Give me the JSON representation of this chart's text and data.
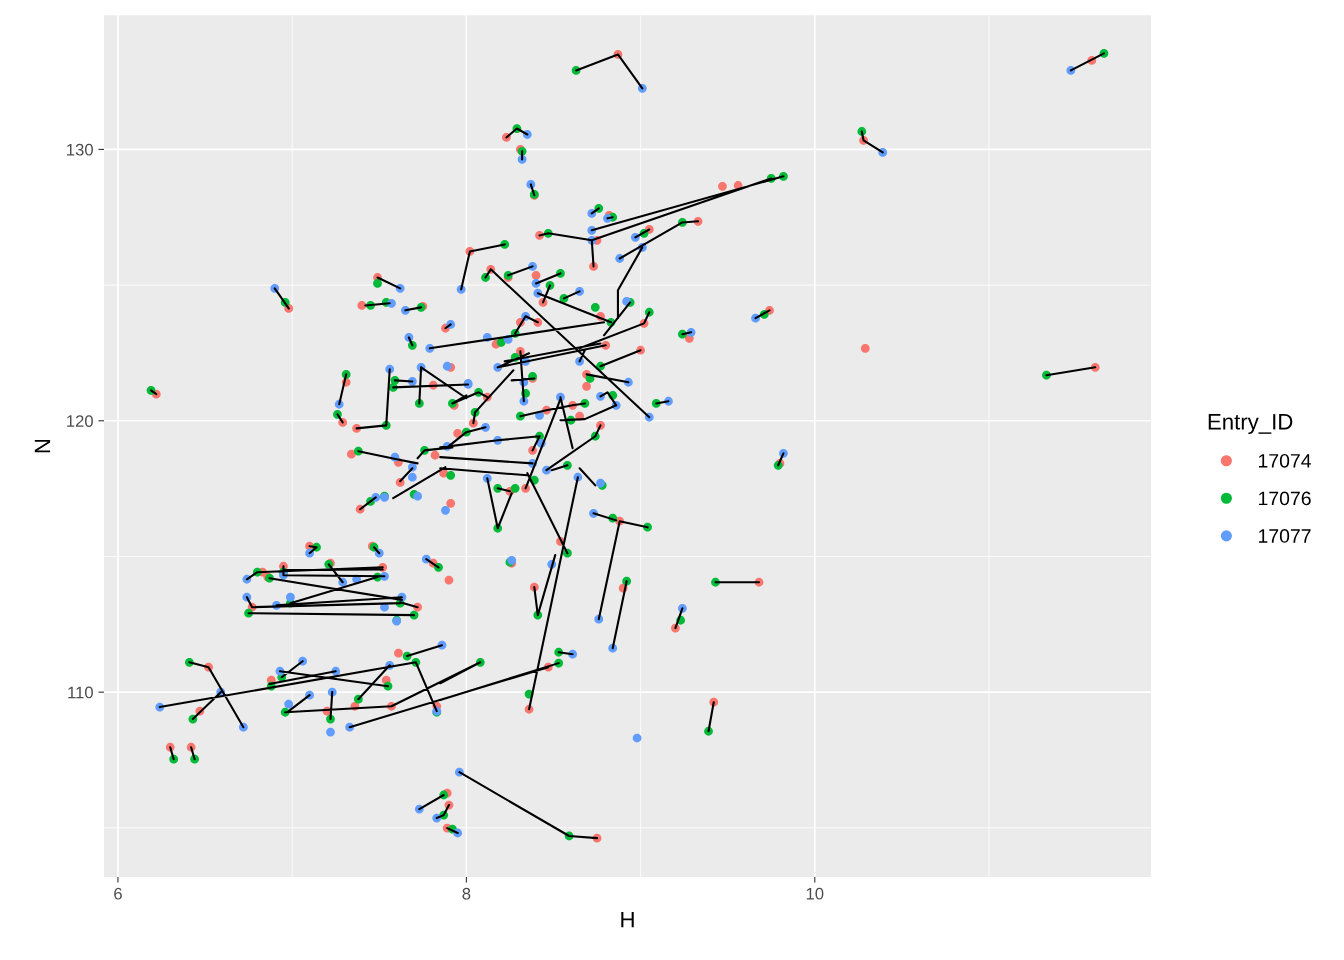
{
  "chart_data": {
    "type": "scatter",
    "xlabel": "H",
    "ylabel": "N",
    "legend_title": "Entry_ID",
    "xlim": [
      5.92,
      11.93
    ],
    "ylim": [
      103.19,
      134.94
    ],
    "xticks": [
      6,
      8,
      10
    ],
    "yticks": [
      110,
      120,
      130
    ],
    "grid": true,
    "legend": "right",
    "series": [
      {
        "name": "17074",
        "color": "#f8766d",
        "marker": "circle",
        "x": [
          8.87,
          11.59,
          10.28,
          10.29,
          11.61,
          9.8,
          9.74,
          9.47,
          9.56,
          8.23,
          8.31,
          8.39,
          8.02,
          8.42,
          8.75,
          8.82,
          9.05,
          9.33,
          6.52,
          6.47,
          6.3,
          6.42,
          6.88,
          7.54,
          7.61,
          null,
          7.2,
          7.36,
          7.57,
          7.83,
          8.75,
          7.89,
          7.9,
          7.89,
          6.83,
          7.52,
          6.86,
          6.95,
          7.22,
          6.77,
          null,
          7.72,
          7.1,
          7.46,
          7.81,
          7.9,
          6.98,
          6.22,
          7.49,
          7.4,
          7.75,
          7.88,
          7.91,
          7.31,
          7.29,
          7.37,
          7.81,
          7.93,
          7.34,
          7.61,
          7.82,
          7.87,
          7.62,
          7.39,
          7.91,
          8.73,
          8.14,
          8.24,
          8.4,
          8.44,
          8.77,
          9.02,
          8.31,
          8.41,
          8.17,
          9.0,
          8.8,
          8.31,
          8.38,
          8.04,
          8.12,
          8.69,
          8.69,
          7.95,
          8.46,
          8.61,
          8.65,
          8.77,
          8.38,
          8.34,
          8.25,
          8.88,
          8.54,
          8.26,
          8.39,
          8.9,
          9.2,
          9.68,
          8.47,
          8.36,
          9.42,
          9.28
        ],
        "values": [
          133.5,
          133.28,
          130.33,
          122.67,
          121.97,
          118.43,
          124.07,
          128.64,
          128.67,
          130.44,
          130.0,
          128.31,
          126.24,
          126.83,
          126.65,
          127.57,
          127.05,
          127.35,
          110.92,
          109.3,
          107.97,
          107.97,
          110.44,
          110.44,
          111.44,
          null,
          109.3,
          109.48,
          109.48,
          109.48,
          104.62,
          106.28,
          105.84,
          104.99,
          114.42,
          114.6,
          114.24,
          114.64,
          114.75,
          113.13,
          null,
          113.13,
          115.38,
          115.38,
          114.75,
          114.13,
          124.14,
          120.98,
          125.28,
          124.25,
          124.22,
          123.41,
          121.97,
          121.42,
          119.94,
          119.72,
          121.31,
          120.57,
          118.77,
          118.47,
          118.73,
          118.07,
          117.73,
          116.74,
          116.96,
          125.69,
          125.58,
          125.28,
          125.36,
          124.36,
          123.85,
          123.59,
          123.63,
          123.63,
          122.82,
          122.6,
          122.78,
          122.56,
          121.56,
          119.91,
          120.87,
          121.71,
          121.27,
          119.54,
          120.39,
          120.57,
          120.17,
          119.83,
          118.91,
          117.51,
          117.4,
          116.3,
          115.56,
          114.75,
          113.87,
          113.83,
          112.36,
          114.05,
          110.92,
          109.37,
          109.63,
          123.04
        ]
      },
      {
        "name": "17076",
        "color": "#00ba38",
        "marker": "circle",
        "x": [
          8.63,
          11.66,
          10.27,
          11.33,
          9.79,
          9.71,
          9.75,
          9.82,
          8.29,
          8.32,
          8.39,
          8.22,
          8.47,
          8.76,
          8.84,
          9.02,
          9.24,
          6.41,
          6.43,
          6.32,
          6.44,
          6.88,
          6.94,
          7.55,
          7.66,
          7.71,
          8.08,
          6.96,
          7.22,
          7.38,
          7.83,
          8.59,
          7.87,
          7.87,
          7.92,
          6.8,
          7.49,
          6.87,
          6.95,
          7.21,
          6.75,
          6.99,
          7.62,
          7.7,
          7.6,
          7.14,
          7.47,
          7.84,
          6.96,
          6.19,
          7.49,
          7.45,
          7.54,
          7.74,
          7.69,
          7.31,
          7.26,
          7.54,
          7.59,
          7.58,
          7.73,
          7.92,
          7.38,
          7.76,
          7.91,
          7.53,
          7.7,
          7.45,
          8.11,
          8.24,
          8.54,
          8.48,
          8.56,
          8.74,
          8.83,
          9.05,
          8.94,
          8.28,
          8.2,
          8.77,
          8.28,
          8.38,
          8.34,
          8.05,
          8.07,
          8.0,
          8.71,
          8.84,
          9.09,
          8.31,
          8.68,
          8.6,
          8.74,
          8.58,
          8.42,
          8.39,
          8.28,
          8.18,
          8.18,
          8.78,
          8.84,
          9.04,
          8.58,
          8.25,
          8.41,
          8.92,
          9.23,
          9.43,
          8.53,
          8.53,
          8.36,
          9.39,
          9.24
        ],
        "values": [
          132.91,
          133.54,
          130.66,
          121.68,
          118.36,
          123.92,
          128.93,
          129.01,
          130.77,
          129.93,
          128.34,
          126.5,
          126.91,
          127.83,
          127.5,
          126.91,
          127.31,
          111.1,
          109.01,
          107.53,
          107.53,
          110.22,
          110.55,
          110.22,
          111.33,
          111.1,
          111.1,
          109.26,
          109.01,
          109.74,
          109.26,
          104.7,
          106.21,
          105.47,
          104.95,
          114.42,
          114.24,
          114.2,
          114.42,
          114.71,
          112.91,
          113.28,
          113.28,
          112.84,
          112.65,
          115.34,
          115.34,
          114.6,
          124.36,
          121.12,
          125.06,
          124.25,
          124.36,
          124.18,
          122.78,
          121.71,
          120.24,
          119.83,
          121.49,
          121.23,
          120.64,
          120.64,
          118.88,
          118.91,
          117.99,
          117.22,
          117.29,
          117.03,
          125.28,
          125.36,
          125.43,
          124.99,
          124.51,
          124.18,
          123.63,
          124.0,
          124.36,
          123.22,
          122.89,
          122.01,
          122.34,
          121.64,
          121.01,
          120.31,
          121.05,
          119.58,
          121.56,
          120.94,
          120.64,
          120.17,
          120.64,
          120.02,
          119.43,
          118.36,
          119.43,
          117.81,
          117.51,
          117.51,
          116.04,
          117.62,
          116.41,
          116.08,
          115.12,
          114.79,
          112.84,
          114.09,
          112.65,
          114.05,
          111.47,
          111.07,
          109.93,
          108.56,
          123.19
        ]
      },
      {
        "name": "17077",
        "color": "#619cff",
        "marker": "circle",
        "x": [
          9.01,
          11.47,
          10.39,
          9.82,
          9.66,
          8.72,
          8.72,
          8.35,
          8.32,
          8.37,
          7.97,
          8.72,
          8.81,
          8.97,
          9.01,
          8.88,
          6.72,
          6.24,
          6.59,
          6.93,
          7.06,
          7.25,
          7.86,
          7.56,
          6.98,
          7.1,
          7.23,
          7.22,
          7.33,
          7.83,
          7.96,
          7.73,
          7.83,
          7.95,
          6.74,
          7.53,
          6.95,
          7.29,
          7.37,
          6.74,
          6.91,
          6.99,
          7.63,
          7.53,
          7.6,
          7.1,
          7.5,
          7.77,
          6.9,
          7.62,
          7.57,
          7.65,
          7.91,
          7.67,
          7.79,
          7.89,
          7.27,
          7.56,
          7.69,
          8.01,
          7.74,
          7.59,
          7.69,
          7.89,
          7.69,
          7.53,
          7.72,
          7.48,
          7.88,
          8.38,
          8.4,
          8.41,
          8.65,
          8.92,
          8.34,
          8.24,
          8.12,
          9.05,
          8.18,
          8.34,
          8.33,
          8.33,
          8.01,
          8.93,
          8.65,
          8.77,
          8.86,
          9.16,
          8.42,
          8.54,
          8.11,
          8.18,
          8.43,
          8.46,
          8.64,
          8.38,
          8.12,
          8.77,
          8.73,
          8.76,
          8.26,
          8.49,
          8.84,
          9.24,
          8.61,
          8.98,
          9.29
        ],
        "values": [
          132.25,
          132.91,
          129.89,
          118.8,
          123.78,
          127.02,
          126.65,
          130.55,
          129.63,
          128.71,
          124.84,
          127.64,
          127.46,
          126.76,
          126.39,
          125.98,
          108.71,
          109.45,
          110.0,
          110.77,
          111.14,
          110.77,
          111.73,
          110.99,
          109.56,
          109.89,
          110.0,
          108.53,
          108.71,
          109.3,
          107.05,
          105.69,
          105.36,
          104.81,
          114.16,
          114.27,
          114.31,
          114.05,
          114.16,
          113.5,
          113.2,
          113.5,
          113.5,
          113.13,
          112.62,
          115.12,
          115.12,
          114.9,
          124.88,
          124.88,
          124.33,
          124.07,
          123.55,
          123.07,
          122.67,
          122.01,
          120.61,
          121.9,
          121.45,
          121.34,
          121.97,
          118.66,
          118.29,
          119.06,
          117.92,
          117.18,
          117.22,
          117.18,
          116.7,
          125.69,
          125.06,
          124.7,
          124.77,
          124.4,
          123.85,
          123.0,
          123.07,
          120.13,
          121.97,
          122.19,
          121.42,
          120.72,
          121.38,
          121.42,
          122.19,
          120.9,
          120.57,
          120.72,
          120.2,
          120.87,
          119.76,
          119.28,
          119.17,
          118.18,
          117.92,
          118.43,
          117.88,
          117.7,
          116.59,
          112.69,
          114.86,
          114.71,
          111.62,
          113.09,
          111.4,
          108.31,
          123.26
        ]
      },
      {
        "type": "line",
        "color": "#000000",
        "marker": "none",
        "x": [
          8.63,
          8.87,
          9.01,
          null,
          11.47,
          11.66,
          null,
          10.27,
          10.28,
          10.39,
          null,
          11.33,
          11.61,
          null,
          9.79,
          9.82,
          null,
          9.66,
          9.74,
          null,
          8.72,
          9.82,
          null,
          8.72,
          9.75,
          null,
          8.23,
          8.29,
          8.35,
          null,
          8.32,
          8.32,
          null,
          8.37,
          8.39,
          null,
          8.22,
          8.02,
          7.97,
          null,
          8.42,
          8.47,
          8.72,
          null,
          8.72,
          8.76,
          null,
          8.81,
          8.84,
          null,
          8.97,
          9.05,
          null,
          8.88,
          9.24,
          9.33,
          null,
          8.73,
          8.72,
          null,
          9.01,
          8.87,
          8.87,
          null,
          8.14,
          9.05,
          null,
          8.14,
          8.11,
          null,
          8.24,
          8.38,
          null,
          8.4,
          8.54,
          null,
          8.48,
          8.44,
          null,
          8.41,
          8.83,
          null,
          8.56,
          8.65,
          null,
          9.05,
          9.02,
          8.65,
          null,
          8.94,
          8.79,
          null,
          8.28,
          8.34,
          8.41,
          null,
          7.79,
          8.79,
          null,
          9.0,
          8.77,
          null,
          8.18,
          8.8,
          null,
          8.22,
          8.77,
          null,
          8.31,
          8.33,
          null,
          8.18,
          8.36,
          null,
          8.26,
          8.39,
          null,
          8.27,
          8.05,
          null,
          8.69,
          8.93,
          null,
          8.65,
          8.68,
          null,
          8.77,
          8.81,
          8.86,
          null,
          9.09,
          9.16,
          null,
          8.31,
          8.46,
          8.61,
          8.68,
          null,
          8.54,
          8.61,
          null,
          8.54,
          8.34,
          null,
          8.54,
          8.68,
          8.86,
          null,
          8.77,
          8.74,
          8.46,
          null,
          8.58,
          8.49,
          null,
          7.85,
          8.18,
          8.42,
          null,
          8.42,
          8.38,
          null,
          7.85,
          8.38,
          null,
          7.85,
          8.35,
          null,
          8.12,
          8.18,
          8.26,
          null,
          8.18,
          8.25,
          null,
          8.35,
          8.58,
          null,
          8.36,
          8.64,
          null,
          8.65,
          8.74,
          null,
          8.73,
          8.86,
          null,
          8.76,
          8.88,
          9.04,
          null,
          8.84,
          8.92,
          null,
          9.2,
          9.24,
          null,
          9.43,
          9.68,
          null,
          9.42,
          9.39,
          null,
          8.53,
          8.61,
          null,
          7.85,
          8.53,
          null,
          7.85,
          8.08,
          null,
          7.96,
          8.59,
          8.75,
          null,
          8.39,
          8.41,
          8.51,
          null,
          6.24,
          7.71,
          null,
          6.41,
          6.52,
          6.72,
          null,
          6.43,
          6.59,
          null,
          7.06,
          6.94,
          null,
          6.93,
          7.55,
          null,
          6.87,
          7.25,
          null,
          7.38,
          7.56,
          null,
          7.66,
          7.86,
          null,
          7.71,
          7.83,
          null,
          6.96,
          7.57,
          8.08,
          null,
          7.1,
          6.98,
          null,
          7.23,
          7.22,
          null,
          7.33,
          8.47,
          null,
          6.3,
          6.32,
          null,
          6.42,
          6.44,
          null,
          7.73,
          7.87,
          null,
          7.9,
          7.87,
          7.83,
          null,
          7.89,
          7.95,
          null,
          6.74,
          6.8,
          7.52,
          null,
          6.95,
          6.95,
          7.53,
          null,
          6.95,
          7.52,
          null,
          6.87,
          7.63,
          null,
          6.99,
          7.49,
          null,
          7.21,
          7.29,
          null,
          6.74,
          6.77,
          7.62,
          null,
          6.75,
          7.7,
          null,
          6.91,
          7.63,
          null,
          7.62,
          7.72,
          null,
          7.1,
          7.14,
          7.1,
          null,
          7.47,
          7.5,
          null,
          7.77,
          7.84,
          null,
          6.9,
          6.98,
          null,
          6.19,
          6.22,
          null,
          7.49,
          7.62,
          null,
          7.42,
          7.56,
          null,
          7.65,
          7.74,
          null,
          7.91,
          7.88,
          null,
          7.67,
          7.69,
          null,
          7.31,
          7.27,
          null,
          7.26,
          7.29,
          null,
          7.37,
          7.54,
          7.56,
          null,
          7.59,
          7.69,
          null,
          7.58,
          8.01,
          null,
          7.74,
          7.73,
          null,
          7.74,
          8.0,
          null,
          7.92,
          8.0,
          null,
          7.38,
          7.6,
          7.72,
          null,
          7.72,
          7.76,
          7.92,
          null,
          7.58,
          7.88,
          null,
          7.62,
          7.69,
          null,
          7.39,
          7.48,
          null,
          7.92,
          8.07,
          8.12,
          null,
          7.89,
          8.0,
          8.11,
          null,
          8.05,
          8.04,
          null,
          9.24,
          9.29
        ],
        "values": [
          132.91,
          133.5,
          132.25,
          null,
          132.91,
          133.54,
          null,
          130.66,
          130.33,
          129.89,
          null,
          121.68,
          121.97,
          null,
          118.36,
          118.8,
          null,
          123.78,
          124.07,
          null,
          127.02,
          129.01,
          null,
          126.65,
          128.93,
          null,
          130.44,
          130.77,
          130.55,
          null,
          129.93,
          129.63,
          null,
          128.71,
          128.31,
          null,
          126.5,
          126.24,
          124.84,
          null,
          126.83,
          126.91,
          126.65,
          null,
          127.64,
          127.83,
          null,
          127.46,
          127.5,
          null,
          126.76,
          127.05,
          null,
          125.98,
          127.31,
          127.35,
          null,
          125.69,
          126.65,
          null,
          126.39,
          124.81,
          123.78,
          null,
          125.58,
          120.13,
          null,
          125.58,
          125.28,
          null,
          125.36,
          125.69,
          null,
          125.06,
          125.43,
          null,
          124.99,
          124.36,
          null,
          124.7,
          123.63,
          null,
          124.51,
          124.77,
          null,
          124.0,
          123.59,
          122.67,
          null,
          124.36,
          123.15,
          null,
          123.22,
          123.85,
          123.63,
          null,
          122.67,
          123.63,
          null,
          122.6,
          122.01,
          null,
          121.97,
          122.78,
          null,
          122.19,
          122.85,
          null,
          122.56,
          120.72,
          null,
          121.97,
          122.49,
          null,
          121.49,
          121.56,
          null,
          121.86,
          120.31,
          null,
          121.71,
          121.42,
          null,
          122.19,
          122.6,
          null,
          120.9,
          121.05,
          120.57,
          null,
          120.64,
          120.72,
          null,
          120.17,
          120.39,
          120.57,
          120.64,
          null,
          120.87,
          118.99,
          null,
          120.8,
          117.51,
          null,
          120.02,
          120.06,
          120.57,
          null,
          119.83,
          119.43,
          118.18,
          null,
          118.36,
          118.18,
          null,
          119.02,
          119.28,
          119.43,
          null,
          119.43,
          118.91,
          null,
          118.66,
          118.43,
          null,
          118.25,
          117.99,
          null,
          117.88,
          116.04,
          117.33,
          null,
          117.51,
          117.4,
          null,
          118.07,
          115.12,
          null,
          109.37,
          117.92,
          null,
          118.25,
          117.62,
          null,
          116.59,
          116.33,
          null,
          112.69,
          116.3,
          116.08,
          null,
          111.62,
          114.09,
          null,
          112.36,
          113.09,
          null,
          114.05,
          114.05,
          null,
          109.63,
          108.56,
          null,
          111.47,
          111.4,
          null,
          109.71,
          111.07,
          null,
          110.33,
          111.1,
          null,
          107.05,
          104.7,
          104.62,
          null,
          113.87,
          112.84,
          115.05,
          null,
          109.45,
          111.1,
          null,
          111.1,
          110.92,
          108.71,
          null,
          109.01,
          110.0,
          null,
          111.14,
          110.55,
          null,
          110.77,
          110.22,
          null,
          110.3,
          110.77,
          null,
          109.74,
          110.99,
          null,
          111.33,
          111.73,
          null,
          111.1,
          109.3,
          null,
          109.26,
          109.48,
          111.1,
          null,
          109.89,
          109.3,
          null,
          110.0,
          109.01,
          null,
          108.71,
          110.92,
          null,
          107.97,
          107.53,
          null,
          107.97,
          107.53,
          null,
          105.69,
          106.21,
          null,
          105.84,
          105.47,
          105.36,
          null,
          104.99,
          104.81,
          null,
          114.16,
          114.42,
          114.6,
          null,
          114.64,
          114.31,
          114.27,
          null,
          114.5,
          114.52,
          null,
          114.2,
          113.4,
          null,
          113.28,
          114.24,
          null,
          114.71,
          114.05,
          null,
          113.5,
          113.13,
          113.28,
          null,
          112.91,
          112.84,
          null,
          113.2,
          113.5,
          null,
          113.31,
          113.13,
          null,
          115.38,
          115.34,
          115.12,
          null,
          115.34,
          115.12,
          null,
          114.9,
          114.6,
          null,
          124.88,
          124.14,
          null,
          121.12,
          120.98,
          null,
          125.28,
          124.88,
          null,
          124.25,
          124.33,
          null,
          124.07,
          124.18,
          null,
          123.55,
          123.41,
          null,
          123.07,
          122.78,
          null,
          121.71,
          120.61,
          null,
          120.24,
          119.94,
          null,
          119.72,
          119.83,
          121.9,
          null,
          121.49,
          121.45,
          null,
          121.23,
          121.34,
          null,
          121.97,
          120.64,
          null,
          121.97,
          120.83,
          null,
          120.64,
          120.94,
          null,
          118.88,
          118.58,
          118.43,
          null,
          118.62,
          118.91,
          119.02,
          null,
          117.15,
          118.29,
          null,
          117.77,
          118.25,
          null,
          116.74,
          117.18,
          null,
          120.64,
          121.05,
          120.87,
          null,
          119.02,
          119.58,
          119.76,
          null,
          120.31,
          119.91,
          null,
          123.19,
          123.26
        ]
      }
    ]
  }
}
